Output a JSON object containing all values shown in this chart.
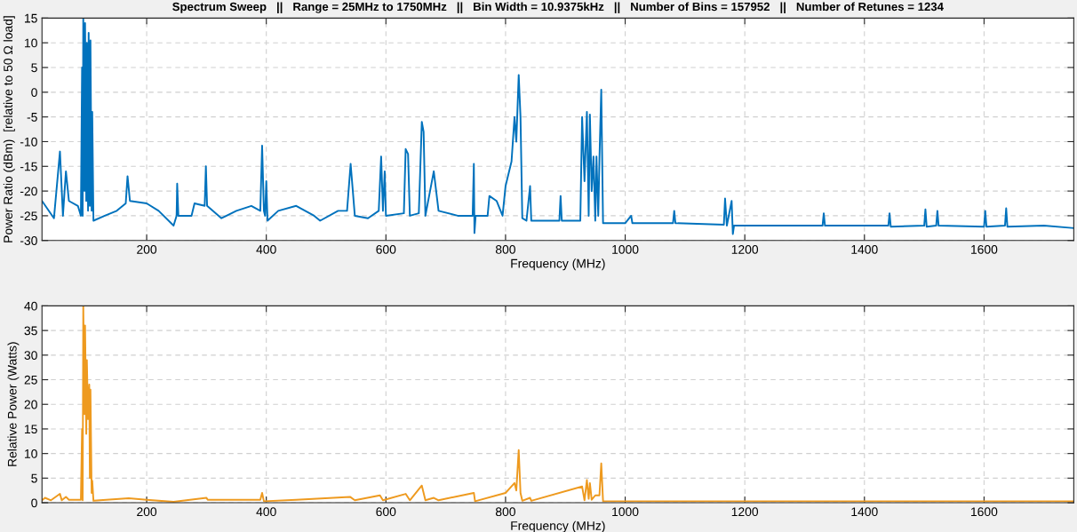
{
  "chart_data": [
    {
      "type": "line",
      "title": "Spectrum Sweep   ||   Range = 25MHz to 1750MHz   ||   Bin Width = 10.9375kHz   ||   Number of Bins = 157952   ||   Number of Retunes = 1234",
      "xlabel": "Frequency (MHz)",
      "ylabel": "Power Ratio (dBm)  [relative to 50 Ω load]",
      "xlim": [
        25,
        1750
      ],
      "xticks": [
        200,
        400,
        600,
        800,
        1000,
        1200,
        1400,
        1600
      ],
      "ylim": [
        -30,
        15
      ],
      "yticks": [
        -30,
        -25,
        -20,
        -15,
        -10,
        -5,
        0,
        5,
        10,
        15
      ],
      "grid": true,
      "series": [
        {
          "color": "#0072bd",
          "x": [
            25,
            45,
            55,
            60,
            65,
            70,
            85,
            90,
            92,
            93,
            94,
            96,
            97,
            99,
            100,
            102,
            103,
            105,
            106,
            108,
            109,
            111,
            130,
            150,
            165,
            168,
            172,
            200,
            220,
            245,
            250,
            251,
            253,
            275,
            280,
            297,
            299,
            301,
            325,
            350,
            375,
            390,
            393,
            396,
            398,
            400,
            402,
            420,
            450,
            480,
            490,
            520,
            535,
            541,
            548,
            570,
            588,
            592,
            595,
            598,
            600,
            630,
            633,
            637,
            640,
            655,
            660,
            663,
            666,
            680,
            688,
            720,
            745,
            747,
            748,
            750,
            770,
            773,
            785,
            795,
            800,
            810,
            815,
            818,
            822,
            825,
            828,
            835,
            841,
            843,
            890,
            892,
            894,
            925,
            928,
            932,
            936,
            939,
            941,
            944,
            947,
            950,
            952,
            955,
            957,
            960,
            963,
            1000,
            1010,
            1012,
            1080,
            1082,
            1084,
            1165,
            1167,
            1170,
            1178,
            1180,
            1182,
            1330,
            1332,
            1334,
            1440,
            1442,
            1444,
            1500,
            1502,
            1504,
            1520,
            1522,
            1524,
            1600,
            1602,
            1604,
            1635,
            1637,
            1639,
            1700,
            1750
          ],
          "values": [
            -22,
            -25.5,
            -12,
            -25,
            -16,
            -22,
            -23,
            -25,
            5,
            -25,
            15,
            -20,
            14,
            -22,
            10,
            -24,
            12,
            -23,
            10.5,
            -24,
            -4,
            -26,
            -25,
            -24,
            -22.5,
            -17,
            -22,
            -22.5,
            -24,
            -27,
            -25,
            -18.5,
            -25,
            -25,
            -22.5,
            -23,
            -15,
            -23,
            -25.5,
            -24,
            -23,
            -24,
            -10.8,
            -24,
            -25,
            -18,
            -26,
            -24,
            -23,
            -25,
            -26,
            -24,
            -24,
            -14.5,
            -25,
            -25.5,
            -24,
            -13,
            -24,
            -16,
            -25,
            -24.5,
            -11.5,
            -12.5,
            -25,
            -24.5,
            -6,
            -8,
            -25,
            -16,
            -24,
            -25,
            -25,
            -14.5,
            -28.5,
            -25,
            -25,
            -21,
            -22,
            -25,
            -19,
            -14,
            -5,
            -10,
            3.5,
            -5,
            -25.5,
            -26,
            -19,
            -26,
            -26,
            -21,
            -26,
            -26,
            -5,
            -18,
            -4,
            -25,
            -4.5,
            -20,
            -13,
            -26,
            -13,
            -25,
            -13.5,
            0.5,
            -26.5,
            -26.5,
            -25,
            -26.5,
            -26.5,
            -24,
            -26.5,
            -26.8,
            -21.5,
            -27,
            -22,
            -28.7,
            -27,
            -27,
            -24.5,
            -27,
            -27,
            -24.5,
            -27.2,
            -27,
            -23.7,
            -27.2,
            -27,
            -24,
            -27,
            -27.2,
            -24,
            -27.2,
            -27,
            -23.5,
            -27.2,
            -27,
            -27.5
          ]
        }
      ]
    },
    {
      "type": "line",
      "xlabel": "Frequency (MHz)",
      "ylabel": "Relative Power (Watts)",
      "xlim": [
        25,
        1750
      ],
      "xticks": [
        200,
        400,
        600,
        800,
        1000,
        1200,
        1400,
        1600
      ],
      "ylim": [
        0,
        40
      ],
      "yticks": [
        0,
        5,
        10,
        15,
        20,
        25,
        30,
        35,
        40
      ],
      "grid": true,
      "series": [
        {
          "color": "#ee9a1f",
          "x": [
            25,
            30,
            40,
            55,
            58,
            65,
            70,
            90,
            92,
            93,
            94,
            96,
            97,
            99,
            100,
            102,
            104,
            105,
            106,
            108,
            109,
            111,
            170,
            200,
            245,
            300,
            302,
            390,
            393,
            396,
            450,
            540,
            548,
            590,
            595,
            633,
            640,
            660,
            666,
            680,
            688,
            747,
            749,
            800,
            815,
            818,
            822,
            825,
            828,
            841,
            843,
            928,
            932,
            936,
            939,
            941,
            944,
            950,
            957,
            960,
            963,
            1750
          ],
          "values": [
            0.5,
            1,
            0.5,
            1.8,
            0.5,
            1.2,
            0.6,
            0.6,
            15,
            0.5,
            40,
            18,
            36,
            14,
            29,
            17,
            24,
            5,
            23,
            2,
            4.5,
            0.4,
            0.9,
            0.6,
            0.2,
            1,
            0.6,
            0.6,
            2,
            0.3,
            0.6,
            1.2,
            0.5,
            1.5,
            0.5,
            1.8,
            0.5,
            3.5,
            0.5,
            1,
            0.5,
            2,
            0.3,
            2,
            4,
            2.5,
            10.7,
            2,
            0.4,
            1,
            0.4,
            3.3,
            0.5,
            4.6,
            0.8,
            4,
            0.6,
            1.5,
            1.5,
            8,
            0.3,
            0.3
          ]
        }
      ]
    }
  ]
}
